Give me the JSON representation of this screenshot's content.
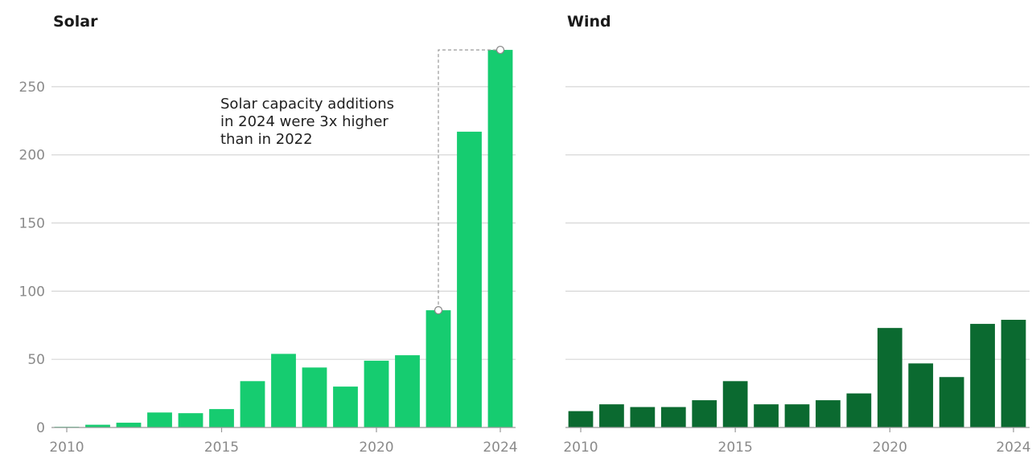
{
  "chart_data": [
    {
      "type": "bar",
      "title": "Solar",
      "color": "#16cc70",
      "x": [
        2010,
        2011,
        2012,
        2013,
        2014,
        2015,
        2016,
        2017,
        2018,
        2019,
        2020,
        2021,
        2022,
        2023,
        2024
      ],
      "values": [
        0.5,
        2,
        3.5,
        11,
        10.5,
        13.5,
        34,
        54,
        44,
        30,
        49,
        53,
        86,
        217,
        277
      ],
      "ylim": [
        0,
        280
      ],
      "yticks": [
        0,
        50,
        100,
        150,
        200,
        250
      ],
      "xticks": [
        2010,
        2015,
        2020,
        2024
      ],
      "xlabel": "",
      "ylabel": "",
      "grid": true,
      "annotation": {
        "lines": [
          "Solar capacity additions",
          "in 2024 were 3x higher",
          "than in 2022"
        ],
        "from_year": 2022,
        "to_year": 2024
      }
    },
    {
      "type": "bar",
      "title": "Wind",
      "color": "#0b6a30",
      "x": [
        2010,
        2011,
        2012,
        2013,
        2014,
        2015,
        2016,
        2017,
        2018,
        2019,
        2020,
        2021,
        2022,
        2023,
        2024
      ],
      "values": [
        12,
        17,
        15,
        15,
        20,
        34,
        17,
        17,
        20,
        25,
        73,
        47,
        37,
        76,
        79
      ],
      "ylim": [
        0,
        280
      ],
      "yticks": [
        0,
        50,
        100,
        150,
        200,
        250
      ],
      "xticks": [
        2010,
        2015,
        2020,
        2024
      ],
      "xlabel": "",
      "ylabel": "",
      "grid": true
    }
  ]
}
